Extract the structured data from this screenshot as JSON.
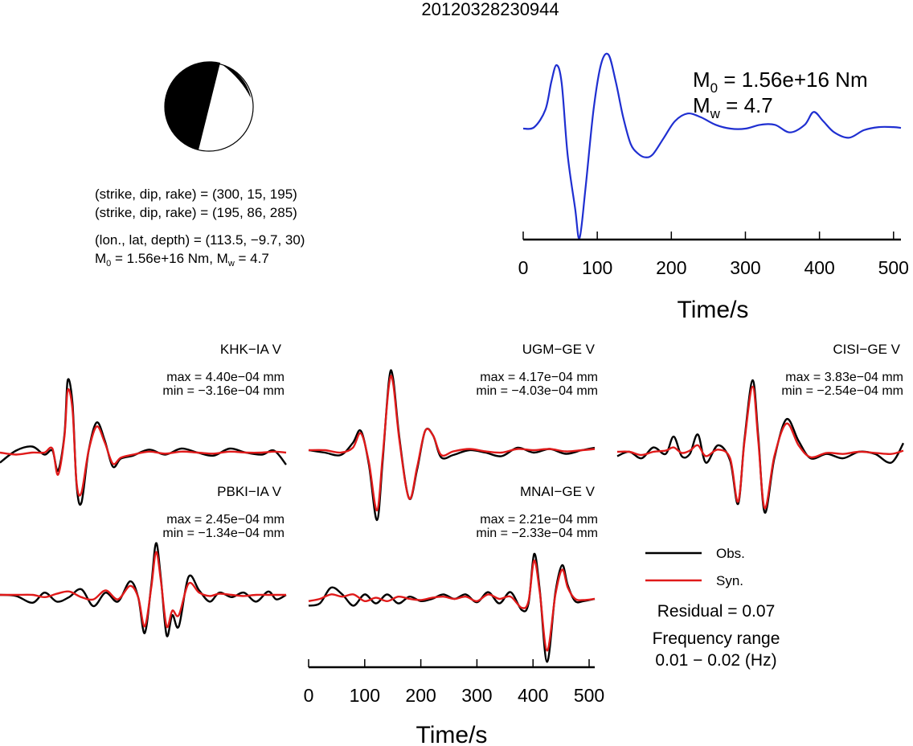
{
  "title": "20120328230944",
  "colors": {
    "stf": "#1f2fd1",
    "observed": "#000000",
    "synthetic": "#e01a1a",
    "beachball_fill": "#000000"
  },
  "mechanism": {
    "lines": [
      "(strike, dip, rake) = (300, 15, 195)",
      "(strike, dip, rake) = (195, 86, 285)",
      "(lon., lat, depth) = (113.5, −9.7, 30)"
    ],
    "m0_prefix": "M",
    "m0_sub": "0",
    "m0_value": " = 1.56e+16 Nm, M",
    "mw_sub": "w",
    "mw_value": " = 4.7"
  },
  "chart_data": [
    {
      "type": "line",
      "name": "source time function",
      "xlabel": "Time/s",
      "xlim": [
        0,
        510
      ],
      "xticks": [
        "0",
        "100",
        "200",
        "300",
        "400",
        "500"
      ],
      "annotation": {
        "m0_prefix": "M",
        "m0_sub": "0",
        "m0_value": " = 1.56e+16 Nm",
        "mw_prefix": "M",
        "mw_sub": "w",
        "mw_value": " = 4.7"
      },
      "x": [
        0,
        15,
        30,
        38,
        45,
        52,
        60,
        70,
        76,
        84,
        95,
        105,
        115,
        125,
        135,
        145,
        155,
        165,
        175,
        190,
        205,
        222,
        240,
        260,
        280,
        300,
        320,
        340,
        360,
        380,
        392,
        405,
        420,
        440,
        460,
        480,
        500,
        510
      ],
      "values": [
        0.0,
        0.02,
        0.25,
        0.62,
        0.84,
        0.6,
        -0.35,
        -1.05,
        -1.45,
        -0.8,
        0.25,
        0.85,
        0.98,
        0.62,
        0.15,
        -0.2,
        -0.33,
        -0.38,
        -0.34,
        -0.12,
        0.1,
        0.2,
        0.15,
        0.05,
        0.0,
        0.0,
        0.05,
        0.05,
        -0.05,
        0.05,
        0.22,
        0.1,
        -0.05,
        -0.12,
        -0.02,
        0.02,
        0.02,
        0.01
      ]
    },
    {
      "type": "line",
      "station": "KHK−IA V",
      "max_label": "max = 4.40e−04 mm",
      "min_label": "min = −3.16e−04 mm",
      "series": [
        {
          "name": "Obs.",
          "x": [
            0,
            20,
            40,
            55,
            65,
            72,
            80,
            84,
            90,
            95,
            101,
            110,
            120,
            130,
            140,
            150,
            165,
            185,
            205,
            225,
            245,
            265,
            285,
            305,
            325,
            340,
            355
          ],
          "values": [
            -0.5,
            0.1,
            0.3,
            -0.1,
            0.1,
            -0.9,
            0.9,
            3.6,
            2.4,
            -1.6,
            -2.5,
            0.1,
            1.5,
            0.6,
            -0.7,
            -0.3,
            -0.15,
            0.15,
            -0.1,
            0.2,
            0.0,
            -0.15,
            0.2,
            0.0,
            -0.1,
            0.1,
            -0.6
          ]
        },
        {
          "name": "Syn.",
          "x": [
            0,
            20,
            40,
            55,
            65,
            72,
            80,
            84,
            90,
            95,
            101,
            110,
            120,
            130,
            140,
            150,
            165,
            185,
            205,
            225,
            245,
            265,
            285,
            305,
            325,
            340,
            355
          ],
          "values": [
            0.0,
            -0.1,
            0.0,
            0.0,
            0.2,
            -1.1,
            0.8,
            3.1,
            2.1,
            -1.5,
            -2.0,
            0.1,
            1.3,
            0.5,
            -0.55,
            -0.25,
            -0.1,
            0.05,
            -0.05,
            0.05,
            0.0,
            -0.05,
            0.05,
            0.0,
            0.0,
            0.05,
            0.0
          ]
        }
      ]
    },
    {
      "type": "line",
      "station": "UGM−GE V",
      "max_label": "max = 4.17e−04 mm",
      "min_label": "min = −4.03e−04 mm",
      "series": [
        {
          "name": "Obs.",
          "x": [
            0,
            20,
            40,
            55,
            65,
            75,
            85,
            92,
            100,
            105,
            113,
            125,
            135,
            145,
            155,
            165,
            180,
            200,
            220,
            240,
            260,
            280,
            300,
            320,
            340,
            356
          ],
          "values": [
            0.0,
            -0.1,
            -0.2,
            0.3,
            0.8,
            -0.6,
            -2.9,
            -0.5,
            2.9,
            3.0,
            0.5,
            -2.0,
            -0.8,
            0.8,
            0.6,
            -0.3,
            -0.2,
            0.0,
            -0.1,
            -0.25,
            0.1,
            -0.1,
            0.05,
            -0.15,
            0.0,
            0.1
          ]
        },
        {
          "name": "Syn.",
          "x": [
            0,
            20,
            40,
            55,
            65,
            75,
            85,
            92,
            100,
            105,
            113,
            125,
            135,
            145,
            155,
            165,
            180,
            200,
            220,
            240,
            260,
            280,
            300,
            320,
            340,
            356
          ],
          "values": [
            0.0,
            0.0,
            -0.1,
            0.1,
            0.7,
            -0.5,
            -2.5,
            -0.3,
            2.7,
            2.8,
            0.4,
            -2.0,
            -0.7,
            0.8,
            0.6,
            -0.2,
            -0.05,
            0.05,
            -0.05,
            -0.1,
            0.05,
            0.0,
            0.05,
            -0.05,
            0.0,
            0.05
          ]
        }
      ]
    },
    {
      "type": "line",
      "station": "CISI−GE V",
      "max_label": "max = 3.83e−04 mm",
      "min_label": "min = −2.54e−04 mm",
      "series": [
        {
          "name": "Obs.",
          "x": [
            0,
            15,
            30,
            45,
            60,
            70,
            80,
            90,
            100,
            110,
            125,
            140,
            150,
            158,
            168,
            175,
            183,
            195,
            210,
            225,
            240,
            260,
            280,
            300,
            320,
            340,
            355
          ],
          "values": [
            -0.2,
            0.0,
            -0.3,
            0.2,
            -0.1,
            0.7,
            -0.2,
            -0.1,
            0.8,
            -0.5,
            0.3,
            -0.4,
            -2.4,
            0.6,
            3.3,
            0.7,
            -2.8,
            -0.3,
            1.5,
            0.5,
            -0.3,
            -0.1,
            -0.3,
            0.0,
            -0.1,
            -0.5,
            0.4
          ]
        },
        {
          "name": "Syn.",
          "x": [
            0,
            15,
            30,
            45,
            60,
            70,
            80,
            90,
            100,
            110,
            125,
            140,
            150,
            158,
            168,
            175,
            183,
            195,
            210,
            225,
            240,
            260,
            280,
            300,
            320,
            340,
            355
          ],
          "values": [
            0.0,
            0.0,
            -0.15,
            0.0,
            0.05,
            0.2,
            -0.05,
            0.05,
            0.3,
            -0.2,
            0.1,
            -0.3,
            -2.3,
            0.5,
            3.0,
            0.5,
            -2.6,
            -0.2,
            1.3,
            0.3,
            -0.25,
            -0.05,
            -0.1,
            0.0,
            -0.05,
            -0.1,
            0.05
          ]
        }
      ]
    },
    {
      "type": "line",
      "station": "PBKI−IA V",
      "max_label": "max = 2.45e−04 mm",
      "min_label": "min = −1.34e−04 mm",
      "series": [
        {
          "name": "Obs.",
          "x": [
            0,
            20,
            40,
            55,
            70,
            85,
            100,
            115,
            130,
            145,
            160,
            170,
            178,
            186,
            192,
            198,
            205,
            212,
            220,
            232,
            245,
            258,
            270,
            285,
            300,
            315,
            330,
            340,
            352
          ],
          "values": [
            0.0,
            -0.05,
            -0.35,
            0.1,
            -0.3,
            -0.1,
            0.25,
            -0.5,
            0.1,
            -0.3,
            0.6,
            -0.1,
            -1.7,
            0.4,
            2.3,
            0.7,
            -1.8,
            -0.9,
            -1.4,
            0.8,
            0.2,
            -0.3,
            0.1,
            -0.1,
            0.1,
            -0.3,
            0.15,
            -0.2,
            0.0
          ]
        },
        {
          "name": "Syn.",
          "x": [
            0,
            20,
            40,
            55,
            70,
            85,
            100,
            115,
            130,
            145,
            160,
            170,
            178,
            186,
            192,
            198,
            205,
            212,
            220,
            232,
            245,
            258,
            270,
            285,
            300,
            315,
            330,
            340,
            352
          ],
          "values": [
            0.0,
            0.0,
            0.0,
            -0.1,
            0.05,
            0.15,
            -0.1,
            -0.2,
            0.2,
            -0.2,
            0.4,
            -0.1,
            -1.4,
            0.3,
            1.9,
            0.6,
            -1.4,
            -0.7,
            -0.9,
            0.5,
            0.1,
            -0.05,
            0.05,
            0.0,
            -0.05,
            0.0,
            0.0,
            0.0,
            0.0
          ]
        }
      ]
    },
    {
      "type": "line",
      "station": "MNAI−GE V",
      "max_label": "max = 2.21e−04 mm",
      "min_label": "min = −2.33e−04 mm",
      "xlabel": "Time/s",
      "xlim": [
        0,
        510
      ],
      "xticks": [
        "0",
        "100",
        "200",
        "300",
        "400",
        "500"
      ],
      "series": [
        {
          "name": "Obs.",
          "x": [
            0,
            20,
            40,
            60,
            80,
            100,
            120,
            140,
            160,
            180,
            200,
            220,
            240,
            260,
            280,
            300,
            320,
            340,
            360,
            380,
            392,
            402,
            412,
            425,
            440,
            452,
            462,
            475,
            490,
            510
          ],
          "values": [
            -0.3,
            -0.2,
            0.5,
            0.2,
            -0.3,
            0.2,
            -0.2,
            0.2,
            -0.2,
            0.1,
            -0.1,
            0.0,
            0.2,
            0.0,
            0.2,
            -0.15,
            0.3,
            -0.2,
            0.3,
            -0.5,
            -0.2,
            2.0,
            0.4,
            -2.8,
            0.3,
            1.5,
            0.6,
            -0.1,
            -0.1,
            0.0
          ]
        },
        {
          "name": "Syn.",
          "x": [
            0,
            20,
            40,
            60,
            80,
            100,
            120,
            140,
            160,
            180,
            200,
            220,
            240,
            260,
            280,
            300,
            320,
            340,
            360,
            380,
            392,
            402,
            412,
            425,
            440,
            452,
            462,
            475,
            490,
            510
          ],
          "values": [
            -0.1,
            0.0,
            0.2,
            0.1,
            0.2,
            -0.1,
            0.05,
            -0.1,
            0.1,
            0.0,
            -0.05,
            0.05,
            0.1,
            0.0,
            0.1,
            -0.1,
            0.2,
            0.0,
            0.1,
            -0.4,
            -0.1,
            1.7,
            0.3,
            -2.3,
            0.2,
            1.3,
            0.5,
            0.0,
            -0.05,
            0.0
          ]
        }
      ]
    }
  ],
  "legend": {
    "obs_label": "Obs.",
    "syn_label": "Syn.",
    "residual": "Residual = 0.07",
    "freq_title": "Frequency range",
    "freq_value": "0.01 − 0.02 (Hz)"
  }
}
